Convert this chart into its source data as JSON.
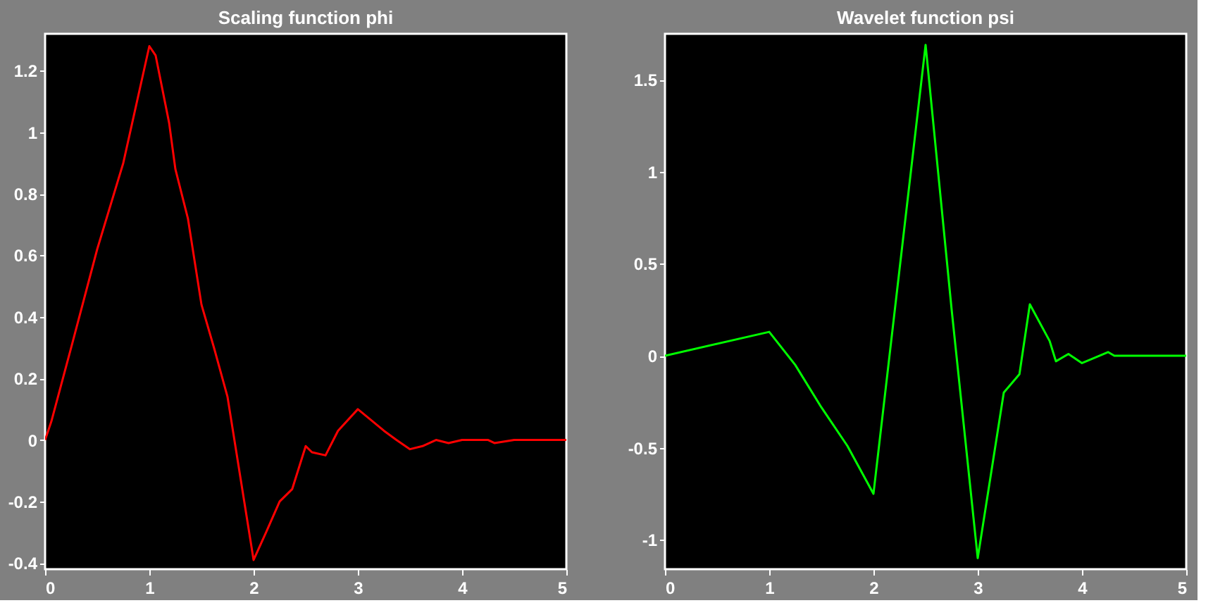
{
  "chart_data": [
    {
      "type": "line",
      "title": "Scaling function phi",
      "xlim": [
        0,
        5
      ],
      "xticks": [
        0,
        1,
        2,
        3,
        4,
        5
      ],
      "ylim": [
        -0.42,
        1.32
      ],
      "yticks": [
        -0.4,
        -0.2,
        0,
        0.2,
        0.4,
        0.6,
        0.8,
        1,
        1.2
      ],
      "grid": false,
      "series": [
        {
          "color": "#ff0000",
          "x": [
            0,
            0.06,
            0.25,
            0.5,
            0.75,
            1,
            1.06,
            1.19,
            1.25,
            1.37,
            1.5,
            1.62,
            1.75,
            2,
            2.12,
            2.25,
            2.37,
            2.5,
            2.56,
            2.69,
            2.81,
            3,
            3.25,
            3.37,
            3.5,
            3.62,
            3.75,
            3.87,
            4,
            4.25,
            4.31,
            4.5,
            5
          ],
          "values": [
            0,
            0.06,
            0.3,
            0.62,
            0.9,
            1.28,
            1.25,
            1.03,
            0.88,
            0.72,
            0.44,
            0.3,
            0.14,
            -0.39,
            -0.3,
            -0.2,
            -0.16,
            -0.02,
            -0.04,
            -0.05,
            0.03,
            0.1,
            0.03,
            0,
            -0.03,
            -0.02,
            0,
            -0.01,
            0,
            0,
            -0.01,
            0,
            0
          ]
        }
      ]
    },
    {
      "type": "line",
      "title": "Wavelet function psi",
      "xlim": [
        0,
        5
      ],
      "xticks": [
        0,
        1,
        2,
        3,
        4,
        5
      ],
      "ylim": [
        -1.16,
        1.75
      ],
      "yticks": [
        -1,
        -0.5,
        0,
        0.5,
        1,
        1.5
      ],
      "grid": false,
      "series": [
        {
          "color": "#00ff00",
          "x": [
            0,
            1,
            1.25,
            1.5,
            1.75,
            2,
            2.5,
            2.75,
            3,
            3.25,
            3.4,
            3.5,
            3.69,
            3.75,
            3.87,
            4,
            4.25,
            4.31,
            5
          ],
          "values": [
            0,
            0.13,
            -0.05,
            -0.28,
            -0.49,
            -0.75,
            1.69,
            0.25,
            -1.1,
            -0.2,
            -0.1,
            0.28,
            0.08,
            -0.03,
            0.01,
            -0.04,
            0.02,
            0,
            0
          ]
        }
      ]
    }
  ]
}
